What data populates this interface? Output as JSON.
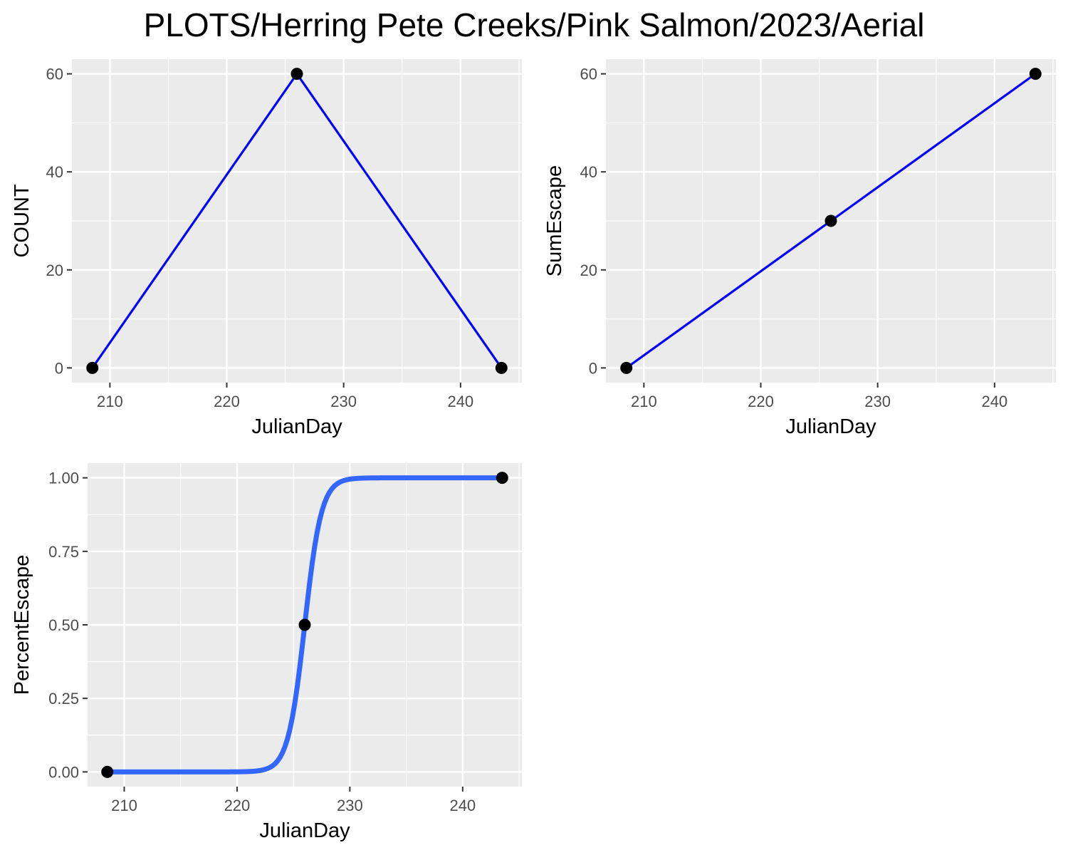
{
  "title": "PLOTS/Herring Pete Creeks/Pink Salmon/2023/Aerial",
  "colors": {
    "panel_background": "#ebebeb",
    "gridline": "#ffffff",
    "line_blue": "#0000ff",
    "smooth_blue": "#3366ff",
    "point": "#000000",
    "tick_text": "#4d4d4d"
  },
  "chart_data": [
    {
      "type": "line",
      "xlabel": "JulianDay",
      "ylabel": "COUNT",
      "xlim": [
        206.75,
        245.25
      ],
      "ylim": [
        -3,
        63
      ],
      "xticks": [
        210,
        220,
        230,
        240
      ],
      "xtick_labels": [
        "210",
        "220",
        "230",
        "240"
      ],
      "yticks": [
        0,
        20,
        40,
        60
      ],
      "ytick_labels": [
        "0",
        "20",
        "40",
        "60"
      ],
      "grid": true,
      "series": [
        {
          "x": [
            208.5,
            226,
            243.5
          ],
          "y": [
            0,
            60,
            0
          ],
          "style": "line+points"
        }
      ]
    },
    {
      "type": "line",
      "xlabel": "JulianDay",
      "ylabel": "SumEscape",
      "xlim": [
        206.75,
        245.25
      ],
      "ylim": [
        -3,
        63
      ],
      "xticks": [
        210,
        220,
        230,
        240
      ],
      "xtick_labels": [
        "210",
        "220",
        "230",
        "240"
      ],
      "yticks": [
        0,
        20,
        40,
        60
      ],
      "ytick_labels": [
        "0",
        "20",
        "40",
        "60"
      ],
      "grid": true,
      "series": [
        {
          "x": [
            208.5,
            226,
            243.5
          ],
          "y": [
            0,
            30,
            60
          ],
          "style": "line+points"
        }
      ]
    },
    {
      "type": "line",
      "xlabel": "JulianDay",
      "ylabel": "PercentEscape",
      "xlim": [
        206.75,
        245.25
      ],
      "ylim": [
        -0.05,
        1.05
      ],
      "xticks": [
        210,
        220,
        230,
        240
      ],
      "xtick_labels": [
        "210",
        "220",
        "230",
        "240"
      ],
      "yticks": [
        0,
        0.25,
        0.5,
        0.75,
        1
      ],
      "ytick_labels": [
        "0.00",
        "0.25",
        "0.50",
        "0.75",
        "1.00"
      ],
      "grid": true,
      "series": [
        {
          "x": [
            208.5,
            226,
            243.5
          ],
          "y": [
            0,
            0.5,
            1
          ],
          "style": "points"
        },
        {
          "style": "logistic-fit",
          "midpoint": 226,
          "rate": 1.35,
          "x_range": [
            208.5,
            243.5
          ]
        }
      ]
    }
  ]
}
